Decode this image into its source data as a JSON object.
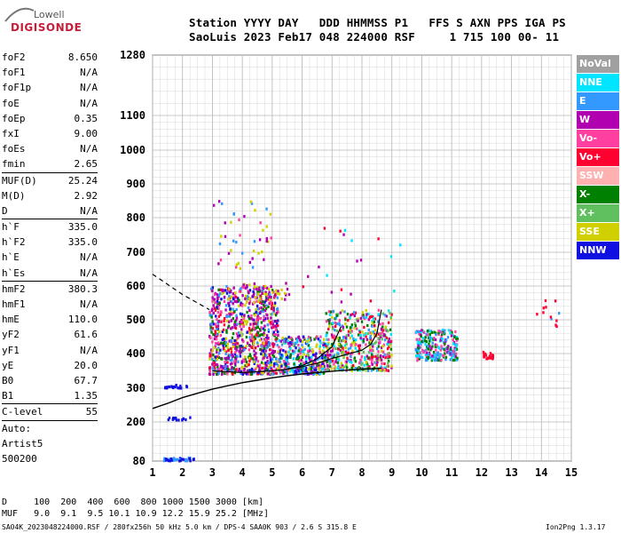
{
  "logo": {
    "line1": "Lowell",
    "line2": "DIGISONDE"
  },
  "header": {
    "line1": "Station YYYY DAY   DDD HHMMSS P1   FFS S AXN PPS IGA PS",
    "line2": "SaoLuis 2023 Feb17 048 224000 RSF     1 715 100 00- 11"
  },
  "params": [
    {
      "k": "foF2",
      "v": "8.650"
    },
    {
      "k": "foF1",
      "v": "N/A"
    },
    {
      "k": "foF1p",
      "v": "N/A"
    },
    {
      "k": "foE",
      "v": "N/A"
    },
    {
      "k": "foEp",
      "v": "0.35"
    },
    {
      "k": "fxI",
      "v": "9.00"
    },
    {
      "k": "foEs",
      "v": "N/A"
    },
    {
      "k": "fmin",
      "v": "2.65"
    },
    {
      "k": "MUF(D)",
      "v": "25.24"
    },
    {
      "k": "M(D)",
      "v": "2.92"
    },
    {
      "k": "D",
      "v": "N/A"
    },
    {
      "k": "h`F",
      "v": "335.0"
    },
    {
      "k": "h`F2",
      "v": "335.0"
    },
    {
      "k": "h`E",
      "v": "N/A"
    },
    {
      "k": "h`Es",
      "v": "N/A"
    },
    {
      "k": "hmF2",
      "v": "380.3"
    },
    {
      "k": "hmF1",
      "v": "N/A"
    },
    {
      "k": "hmE",
      "v": "110.0"
    },
    {
      "k": "yF2",
      "v": "61.6"
    },
    {
      "k": "yF1",
      "v": "N/A"
    },
    {
      "k": "yE",
      "v": "20.0"
    },
    {
      "k": "B0",
      "v": "67.7"
    },
    {
      "k": "B1",
      "v": "1.35"
    },
    {
      "k": "C-level",
      "v": "55"
    }
  ],
  "autoscale": [
    "Auto:",
    "Artist5",
    "500200"
  ],
  "legend": [
    {
      "label": "NoVal",
      "color": "#a0a0a0"
    },
    {
      "label": "NNE",
      "color": "#00e5ff"
    },
    {
      "label": "E",
      "color": "#3399ff"
    },
    {
      "label": "W",
      "color": "#b000b0"
    },
    {
      "label": "Vo-",
      "color": "#ff40a0"
    },
    {
      "label": "Vo+",
      "color": "#ff0030"
    },
    {
      "label": "SSW",
      "color": "#ffb0b0"
    },
    {
      "label": "X-",
      "color": "#008000"
    },
    {
      "label": "X+",
      "color": "#60c060"
    },
    {
      "label": "SSE",
      "color": "#d0d000"
    },
    {
      "label": "NNW",
      "color": "#1010e0"
    }
  ],
  "footer": {
    "d_row": "D     100  200  400  600  800 1000 1500 3000 [km]",
    "muf_row": "MUF   9.0  9.1  9.5 10.1 10.9 12.2 15.9 25.2 [MHz]",
    "info": "SAO4K_2023048224000.RSF / 280fx256h 50 kHz 5.0 km / DPS-4 SAA0K 903 / 2.6 S 315.8 E",
    "version": "Ion2Png 1.3.17"
  },
  "chart_data": {
    "type": "scatter",
    "title": "",
    "xlabel": "",
    "ylabel": "",
    "xlim": [
      1,
      15
    ],
    "ylim": [
      80,
      1280
    ],
    "x_ticks": [
      1,
      2,
      3,
      4,
      5,
      6,
      7,
      8,
      9,
      10,
      11,
      12,
      13,
      14,
      15
    ],
    "y_ticks": [
      80,
      200,
      300,
      400,
      500,
      600,
      700,
      800,
      900,
      1000,
      1100,
      1280
    ],
    "grid": true,
    "echo_clusters": [
      {
        "x": [
          2.9,
          5.2
        ],
        "y": [
          340,
          600
        ],
        "n": 900,
        "colors": [
          "#b000b0",
          "#b000b0",
          "#ff40a0",
          "#ff0030",
          "#d0d000",
          "#1010e0",
          "#3399ff",
          "#008000"
        ]
      },
      {
        "x": [
          5.2,
          6.8
        ],
        "y": [
          340,
          450
        ],
        "n": 350,
        "colors": [
          "#b000b0",
          "#ff40a0",
          "#3399ff",
          "#008000",
          "#d0d000",
          "#00e5ff",
          "#1010e0"
        ]
      },
      {
        "x": [
          6.8,
          9.0
        ],
        "y": [
          350,
          530
        ],
        "n": 500,
        "colors": [
          "#b000b0",
          "#ff40a0",
          "#00e5ff",
          "#3399ff",
          "#008000",
          "#60c060",
          "#ff0030",
          "#d0d000"
        ]
      },
      {
        "x": [
          9.8,
          11.2
        ],
        "y": [
          380,
          470
        ],
        "n": 260,
        "colors": [
          "#00e5ff",
          "#3399ff",
          "#b000b0",
          "#ff40a0",
          "#008000"
        ]
      },
      {
        "x": [
          12.0,
          12.4
        ],
        "y": [
          385,
          410
        ],
        "n": 25,
        "colors": [
          "#ff0030"
        ]
      },
      {
        "x": [
          13.8,
          14.6
        ],
        "y": [
          480,
          560
        ],
        "n": 12,
        "colors": [
          "#ff0030",
          "#b000b0",
          "#3399ff"
        ]
      },
      {
        "x": [
          3.0,
          5.0
        ],
        "y": [
          650,
          860
        ],
        "n": 45,
        "colors": [
          "#b000b0",
          "#ff40a0",
          "#3399ff",
          "#d0d000"
        ]
      },
      {
        "x": [
          4.0,
          5.6
        ],
        "y": [
          560,
          610
        ],
        "n": 40,
        "colors": [
          "#d0d000",
          "#b000b0"
        ]
      },
      {
        "x": [
          1.3,
          2.4
        ],
        "y": [
          80,
          90
        ],
        "n": 40,
        "colors": [
          "#1010e0",
          "#3399ff"
        ]
      },
      {
        "x": [
          1.4,
          2.2
        ],
        "y": [
          300,
          310
        ],
        "n": 20,
        "colors": [
          "#1010e0"
        ]
      },
      {
        "x": [
          1.5,
          2.3
        ],
        "y": [
          205,
          215
        ],
        "n": 15,
        "colors": [
          "#1010e0"
        ]
      },
      {
        "x": [
          6.0,
          9.5
        ],
        "y": [
          550,
          800
        ],
        "n": 20,
        "colors": [
          "#b000b0",
          "#ff0030",
          "#00e5ff"
        ]
      }
    ],
    "trace_curve": {
      "x": [
        1.0,
        1.5,
        2.0,
        2.5,
        3.0,
        3.5,
        4.0,
        4.5,
        5.0,
        5.5,
        6.0,
        6.5,
        7.0,
        7.5,
        8.0,
        8.5,
        8.65
      ],
      "y": [
        240,
        255,
        272,
        285,
        297,
        307,
        316,
        323,
        330,
        336,
        341,
        345,
        349,
        352,
        355,
        357,
        358
      ]
    },
    "dashed_curve": {
      "x": [
        1.0,
        1.5,
        2.0,
        2.5,
        2.9
      ],
      "y": [
        635,
        605,
        575,
        550,
        530
      ]
    },
    "o_trace": {
      "x": [
        3.0,
        4.0,
        5.0,
        5.5,
        6.0,
        6.5,
        7.0,
        7.5,
        8.0,
        8.3,
        8.5,
        8.65
      ],
      "y": [
        350,
        345,
        350,
        355,
        362,
        372,
        386,
        398,
        410,
        428,
        460,
        530
      ]
    },
    "x_trace": {
      "x": [
        5.5,
        6.0,
        6.5,
        7.0,
        7.3
      ],
      "y": [
        356,
        365,
        385,
        420,
        480
      ]
    }
  }
}
